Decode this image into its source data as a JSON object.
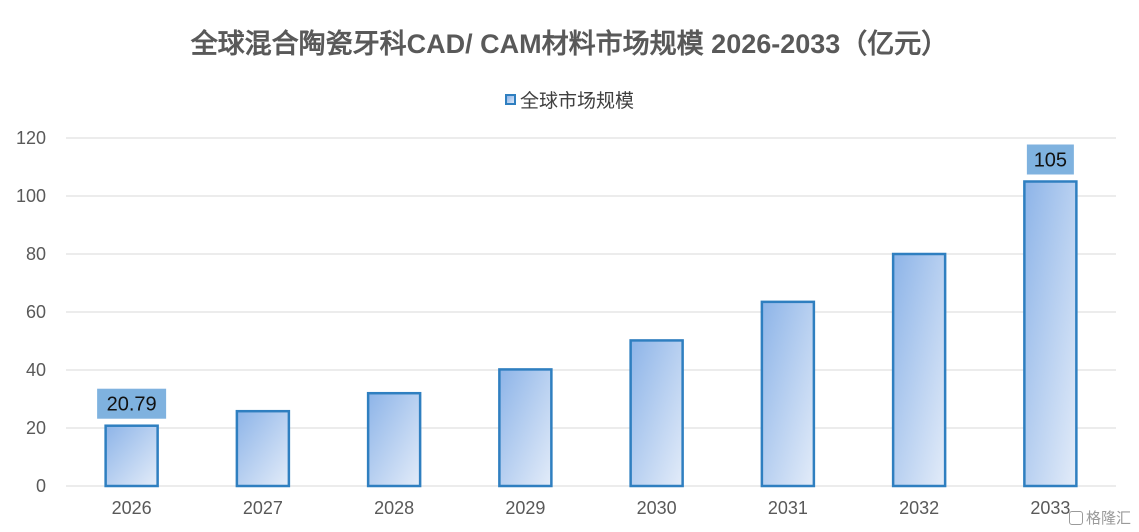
{
  "chart_data": {
    "type": "bar",
    "title": "全球混合陶瓷牙科CAD/ CAM材料市场规模 2026-2033（亿元）",
    "categories": [
      "2026",
      "2027",
      "2028",
      "2029",
      "2030",
      "2031",
      "2032",
      "2033"
    ],
    "series": [
      {
        "name": "全球市场规模",
        "values": [
          20.79,
          25.8,
          32,
          40.2,
          50.2,
          63.5,
          80,
          105
        ]
      }
    ],
    "data_labels": {
      "0": "20.79",
      "7": "105"
    },
    "yticks": [
      "0",
      "20",
      "40",
      "60",
      "80",
      "100",
      "120"
    ],
    "ylim": [
      0,
      120
    ],
    "grid": true,
    "legend_position": "top-center",
    "colors": {
      "bar_gradient_start": "#8db4e8",
      "bar_gradient_end": "#e3ecf9",
      "bar_border": "#2f7fc0",
      "label_background": "#7fb2df",
      "gridline": "#d9d9d9",
      "axis_text": "#595959"
    }
  },
  "watermark": {
    "text": "格隆汇",
    "icon": "logo-icon"
  }
}
